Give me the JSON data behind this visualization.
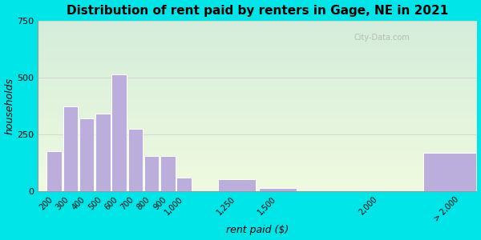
{
  "title": "Distribution of rent paid by renters in Gage, NE in 2021",
  "xlabel": "rent paid ($)",
  "ylabel": "households",
  "bar_positions": [
    200,
    300,
    400,
    500,
    600,
    700,
    800,
    900,
    1000,
    1250,
    1500,
    2000,
    2500
  ],
  "bar_widths": [
    100,
    100,
    100,
    100,
    100,
    100,
    100,
    100,
    100,
    250,
    250,
    500,
    500
  ],
  "bar_values": [
    175,
    375,
    320,
    340,
    515,
    275,
    155,
    155,
    60,
    55,
    15,
    0,
    170
  ],
  "bar_color": "#bbaedd",
  "bar_edge_color": "#ffffff",
  "ylim": [
    0,
    750
  ],
  "yticks": [
    0,
    250,
    500,
    750
  ],
  "tick_labels": [
    "200",
    "300",
    "400",
    "500",
    "600",
    "700",
    "800",
    "900",
    "1,000",
    "1,250",
    "1,500",
    "2,000",
    "> 2,000"
  ],
  "xlim": [
    150,
    2850
  ],
  "bg_color_top": "#d4edda",
  "bg_color_bottom": "#f0fae0",
  "outer_bg": "#00e5e8",
  "watermark": "City-Data.com",
  "title_fontsize": 11,
  "axis_label_fontsize": 9
}
